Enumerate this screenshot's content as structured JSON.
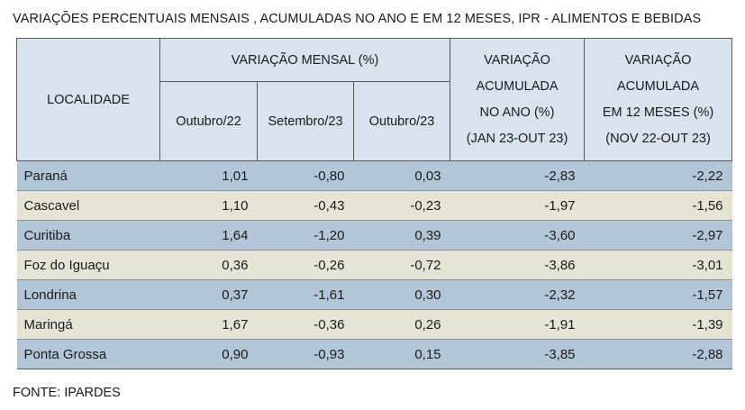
{
  "title": "VARIAÇÕES PERCENTUAIS MENSAIS , ACUMULADAS NO ANO E EM 12 MESES, IPR - ALIMENTOS E BEBIDAS",
  "header": {
    "localidade": "LOCALIDADE",
    "monthly_group": "VARIAÇÃO MENSAL (%)",
    "monthly_cols": [
      "Outubro/22",
      "Setembro/23",
      "Outubro/23"
    ],
    "ytd": [
      "VARIAÇÃO",
      "ACUMULADA",
      "NO ANO (%)",
      "(JAN 23-OUT 23)"
    ],
    "twelve": [
      "VARIAÇÃO",
      "ACUMULADA",
      "EM 12 MESES (%)",
      "(NOV 22-OUT 23)"
    ]
  },
  "rows": [
    {
      "name": "Paraná",
      "values": [
        "1,01",
        "-0,80",
        "0,03",
        "-2,83",
        "-2,22"
      ]
    },
    {
      "name": "Cascavel",
      "values": [
        "1,10",
        "-0,43",
        "-0,23",
        "-1,97",
        "-1,56"
      ]
    },
    {
      "name": "Curitiba",
      "values": [
        "1,64",
        "-1,20",
        "0,39",
        "-3,60",
        "-2,97"
      ]
    },
    {
      "name": "Foz do Iguaçu",
      "values": [
        "0,36",
        "-0,26",
        "-0,72",
        "-3,86",
        "-3,01"
      ]
    },
    {
      "name": "Londrina",
      "values": [
        "0,37",
        "-1,61",
        "0,30",
        "-2,32",
        "-1,57"
      ]
    },
    {
      "name": "Maringá",
      "values": [
        "1,67",
        "-0,36",
        "0,26",
        "-1,91",
        "-1,39"
      ]
    },
    {
      "name": "Ponta Grossa",
      "values": [
        "0,90",
        "-0,93",
        "0,15",
        "-3,85",
        "-2,88"
      ]
    }
  ],
  "source": "FONTE: IPARDES",
  "colors": {
    "header_bg": "#d9e3ee",
    "row_blue": "#b3c6d8",
    "row_beige": "#e6e5d5"
  }
}
